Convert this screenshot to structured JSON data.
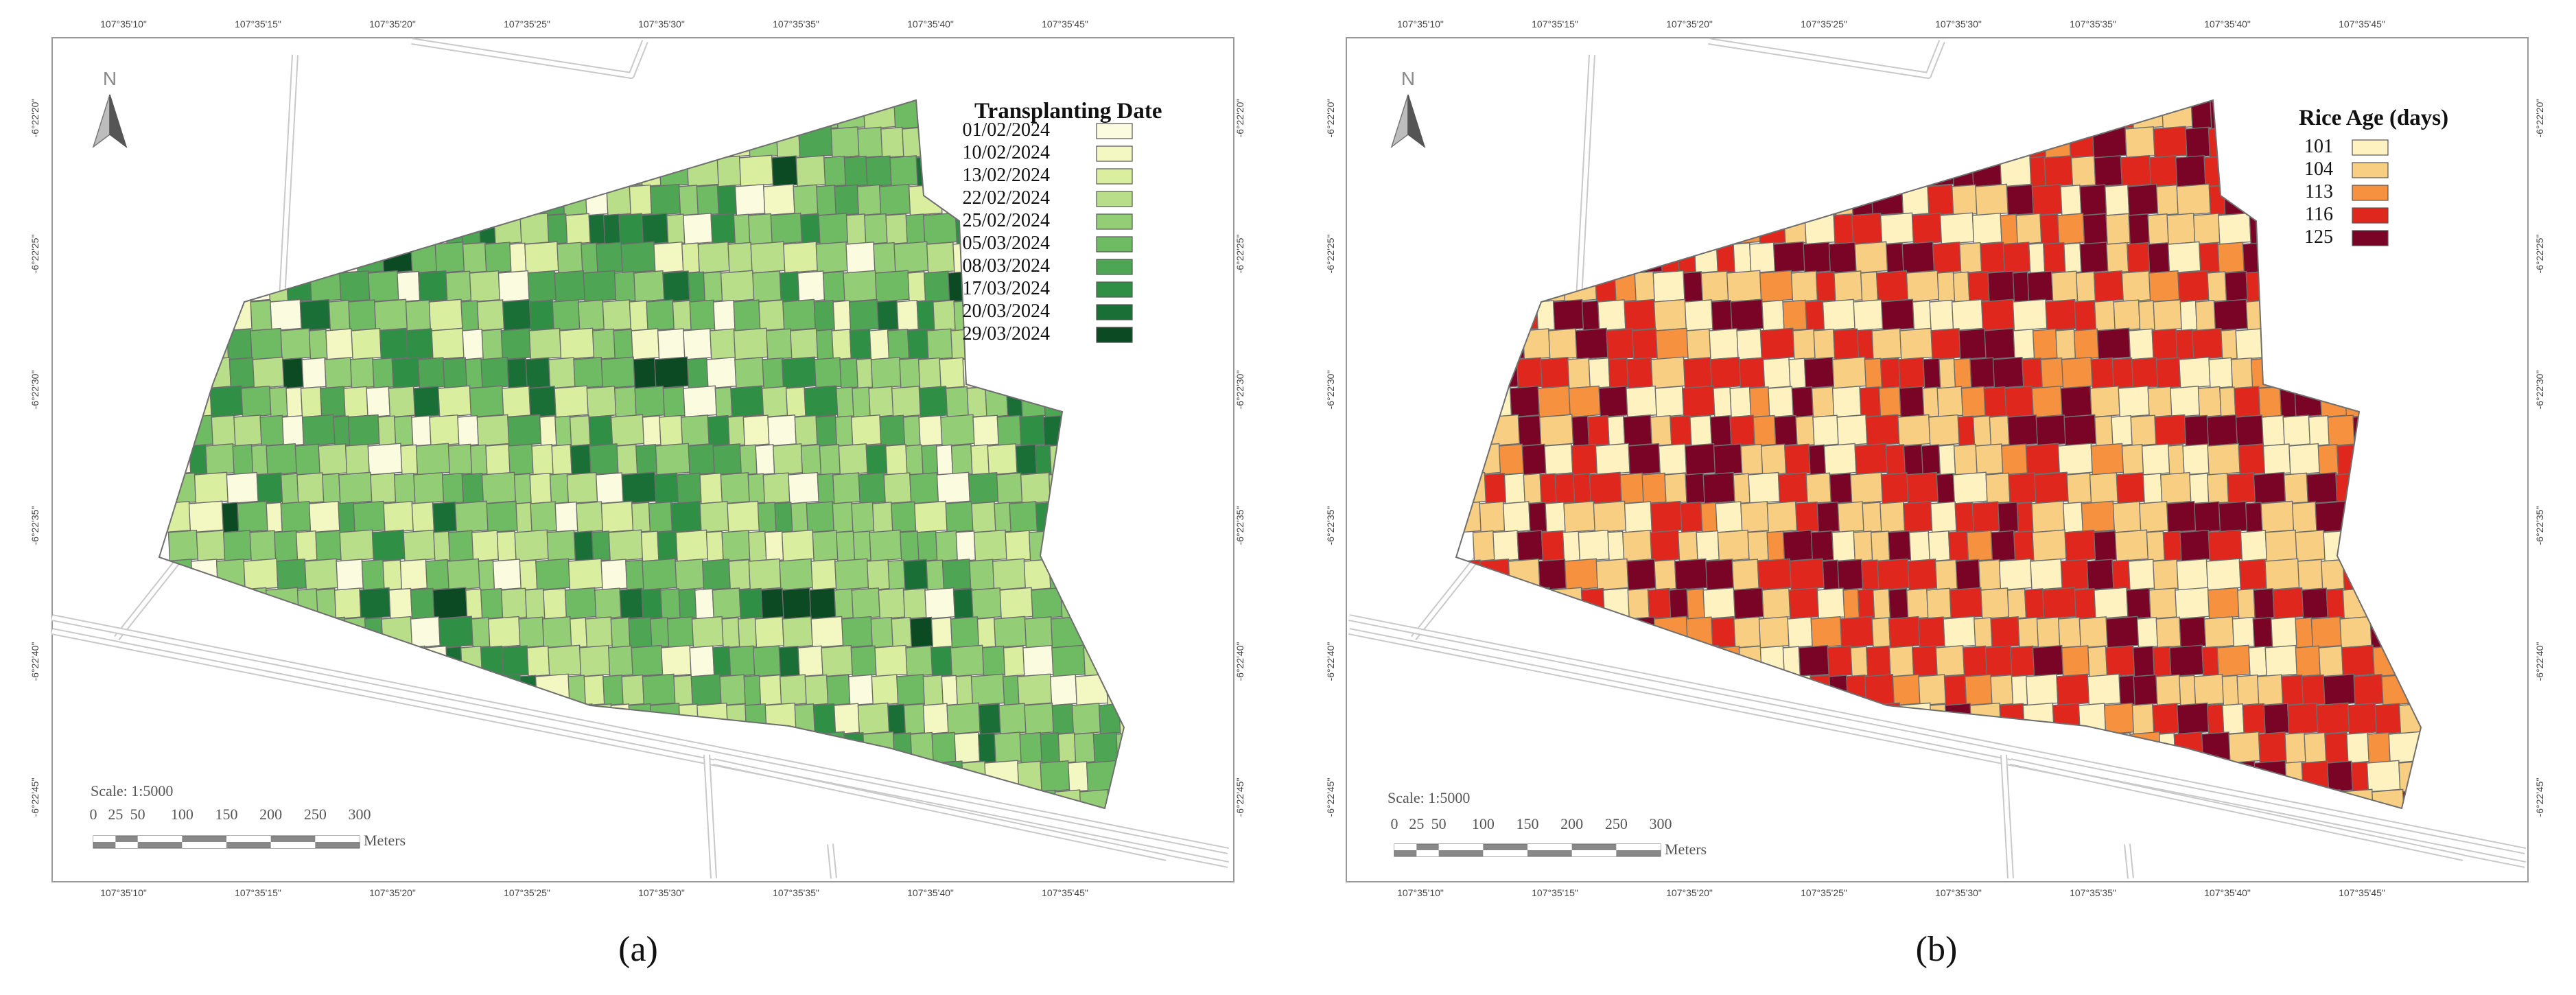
{
  "panels": [
    {
      "id": "a",
      "caption": "(a)",
      "legend_title": "Transplanting Date",
      "legend_items": [
        {
          "label": "01/02/2024",
          "color": "#fbfbdf"
        },
        {
          "label": "10/02/2024",
          "color": "#f3f8c3"
        },
        {
          "label": "13/02/2024",
          "color": "#d9ee9f"
        },
        {
          "label": "22/02/2024",
          "color": "#b8de8a"
        },
        {
          "label": "25/02/2024",
          "color": "#93cd76"
        },
        {
          "label": "05/03/2024",
          "color": "#6fbb64"
        },
        {
          "label": "08/03/2024",
          "color": "#4ea553"
        },
        {
          "label": "17/03/2024",
          "color": "#2f8f45"
        },
        {
          "label": "20/03/2024",
          "color": "#1a6f37"
        },
        {
          "label": "29/03/2024",
          "color": "#0b4a23"
        }
      ],
      "lon_ticks": [
        "107°35'10\"",
        "107°35'15\"",
        "107°35'20\"",
        "107°35'25\"",
        "107°35'30\"",
        "107°35'35\"",
        "107°35'40\"",
        "107°35'45\""
      ],
      "lat_ticks": [
        "-6°22'20\"",
        "-6°22'25\"",
        "-6°22'30\"",
        "-6°22'35\"",
        "-6°22'40\"",
        "-6°22'45\""
      ],
      "north_label": "N",
      "scale_label": "Scale: 1:5000",
      "scale_ticks": [
        "0",
        "25",
        "50",
        "100",
        "150",
        "200",
        "250",
        "300"
      ],
      "scale_unit": "Meters"
    },
    {
      "id": "b",
      "caption": "(b)",
      "legend_title": "Rice Age (days)",
      "legend_items": [
        {
          "label": "101",
          "color": "#fdf2c0"
        },
        {
          "label": "104",
          "color": "#f8cf82"
        },
        {
          "label": "113",
          "color": "#f5913f"
        },
        {
          "label": "116",
          "color": "#e0271e"
        },
        {
          "label": "125",
          "color": "#7a0426"
        }
      ],
      "lon_ticks": [
        "107°35'10\"",
        "107°35'15\"",
        "107°35'20\"",
        "107°35'25\"",
        "107°35'30\"",
        "107°35'35\"",
        "107°35'40\"",
        "107°35'45\""
      ],
      "lat_ticks": [
        "-6°22'20\"",
        "-6°22'25\"",
        "-6°22'30\"",
        "-6°22'35\"",
        "-6°22'40\"",
        "-6°22'45\""
      ],
      "north_label": "N",
      "scale_label": "Scale: 1:5000",
      "scale_ticks": [
        "0",
        "25",
        "50",
        "100",
        "150",
        "200",
        "250",
        "300"
      ],
      "scale_unit": "Meters"
    }
  ]
}
